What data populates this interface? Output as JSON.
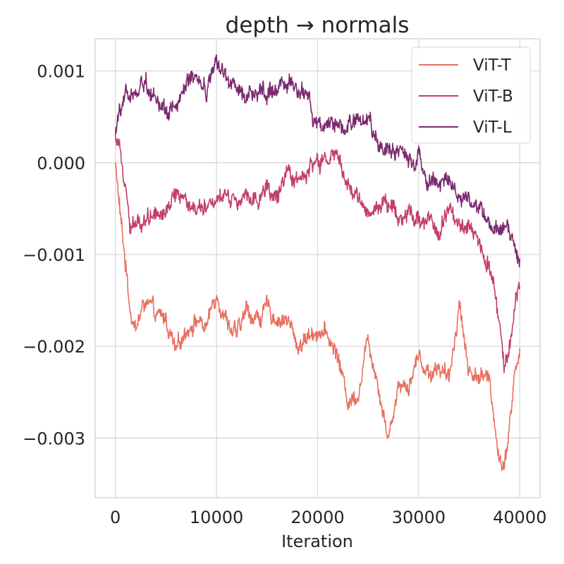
{
  "chart_data": {
    "type": "line",
    "title": "depth → normals",
    "xlabel": "Iteration",
    "ylabel": "",
    "xlim": [
      -2000,
      42000
    ],
    "ylim": [
      -0.00365,
      0.00135
    ],
    "xticks": [
      0,
      10000,
      20000,
      30000,
      40000
    ],
    "xtick_labels": [
      "0",
      "10000",
      "20000",
      "30000",
      "40000"
    ],
    "yticks": [
      0.001,
      0.0,
      -0.001,
      -0.002,
      -0.003
    ],
    "ytick_labels": [
      "0.001",
      "0.000",
      "−0.001",
      "−0.002",
      "−0.003"
    ],
    "grid": true,
    "legend_position": "top-right",
    "x": [
      0,
      500,
      1000,
      1500,
      2000,
      3000,
      4000,
      5000,
      6000,
      7000,
      8000,
      9000,
      10000,
      11000,
      12000,
      13000,
      14000,
      15000,
      16000,
      17000,
      18000,
      19000,
      20000,
      21000,
      22000,
      23000,
      24000,
      25000,
      26000,
      27000,
      28000,
      29000,
      30000,
      31000,
      32000,
      33000,
      34000,
      35000,
      36000,
      37000,
      38000,
      38500,
      39000,
      39500,
      40000
    ],
    "series": [
      {
        "name": "ViT-T",
        "color": "#e8705f",
        "values": [
          0.0,
          -0.0006,
          -0.0011,
          -0.0016,
          -0.0018,
          -0.0015,
          -0.0017,
          -0.0017,
          -0.0021,
          -0.0018,
          -0.0017,
          -0.0018,
          -0.0014,
          -0.0017,
          -0.0019,
          -0.0016,
          -0.0017,
          -0.0016,
          -0.0017,
          -0.0017,
          -0.002,
          -0.0019,
          -0.0018,
          -0.0019,
          -0.0021,
          -0.0026,
          -0.0025,
          -0.0019,
          -0.0024,
          -0.003,
          -0.0024,
          -0.0024,
          -0.0021,
          -0.0023,
          -0.0022,
          -0.0024,
          -0.0015,
          -0.0023,
          -0.0023,
          -0.0024,
          -0.0032,
          -0.0033,
          -0.0028,
          -0.0023,
          -0.0021
        ]
      },
      {
        "name": "ViT-B",
        "color": "#c23e6e",
        "values": [
          0.0003,
          0.0002,
          -0.0002,
          -0.0007,
          -0.0007,
          -0.0006,
          -0.0005,
          -0.0005,
          -0.0003,
          -0.0004,
          -0.0005,
          -0.0004,
          -0.0004,
          -0.0003,
          -0.0004,
          -0.0003,
          -0.0004,
          -0.0003,
          -0.0004,
          -0.0002,
          -0.0002,
          -0.0001,
          0.0,
          0.0,
          0.0001,
          -0.0003,
          -0.0004,
          -0.0005,
          -0.0005,
          -0.0004,
          -0.0006,
          -0.0005,
          -0.0006,
          -0.0006,
          -0.0008,
          -0.0005,
          -0.0006,
          -0.0007,
          -0.0008,
          -0.0011,
          -0.0018,
          -0.0022,
          -0.0019,
          -0.0016,
          -0.0013
        ]
      },
      {
        "name": "ViT-L",
        "color": "#7b2a6e",
        "values": [
          0.0003,
          0.0006,
          0.0007,
          0.0007,
          0.0008,
          0.0009,
          0.0007,
          0.0006,
          0.0006,
          0.0008,
          0.0009,
          0.0008,
          0.0011,
          0.0009,
          0.0008,
          0.0007,
          0.0008,
          0.0008,
          0.0008,
          0.0008,
          0.0008,
          0.0007,
          0.0004,
          0.0003,
          0.0004,
          0.0004,
          0.0005,
          0.0004,
          0.0002,
          0.0002,
          0.0001,
          0.0,
          0.0001,
          -0.0002,
          -0.0002,
          -0.0002,
          -0.0004,
          -0.0004,
          -0.0005,
          -0.0006,
          -0.0007,
          -0.0007,
          -0.0008,
          -0.0009,
          -0.0011
        ]
      }
    ]
  }
}
